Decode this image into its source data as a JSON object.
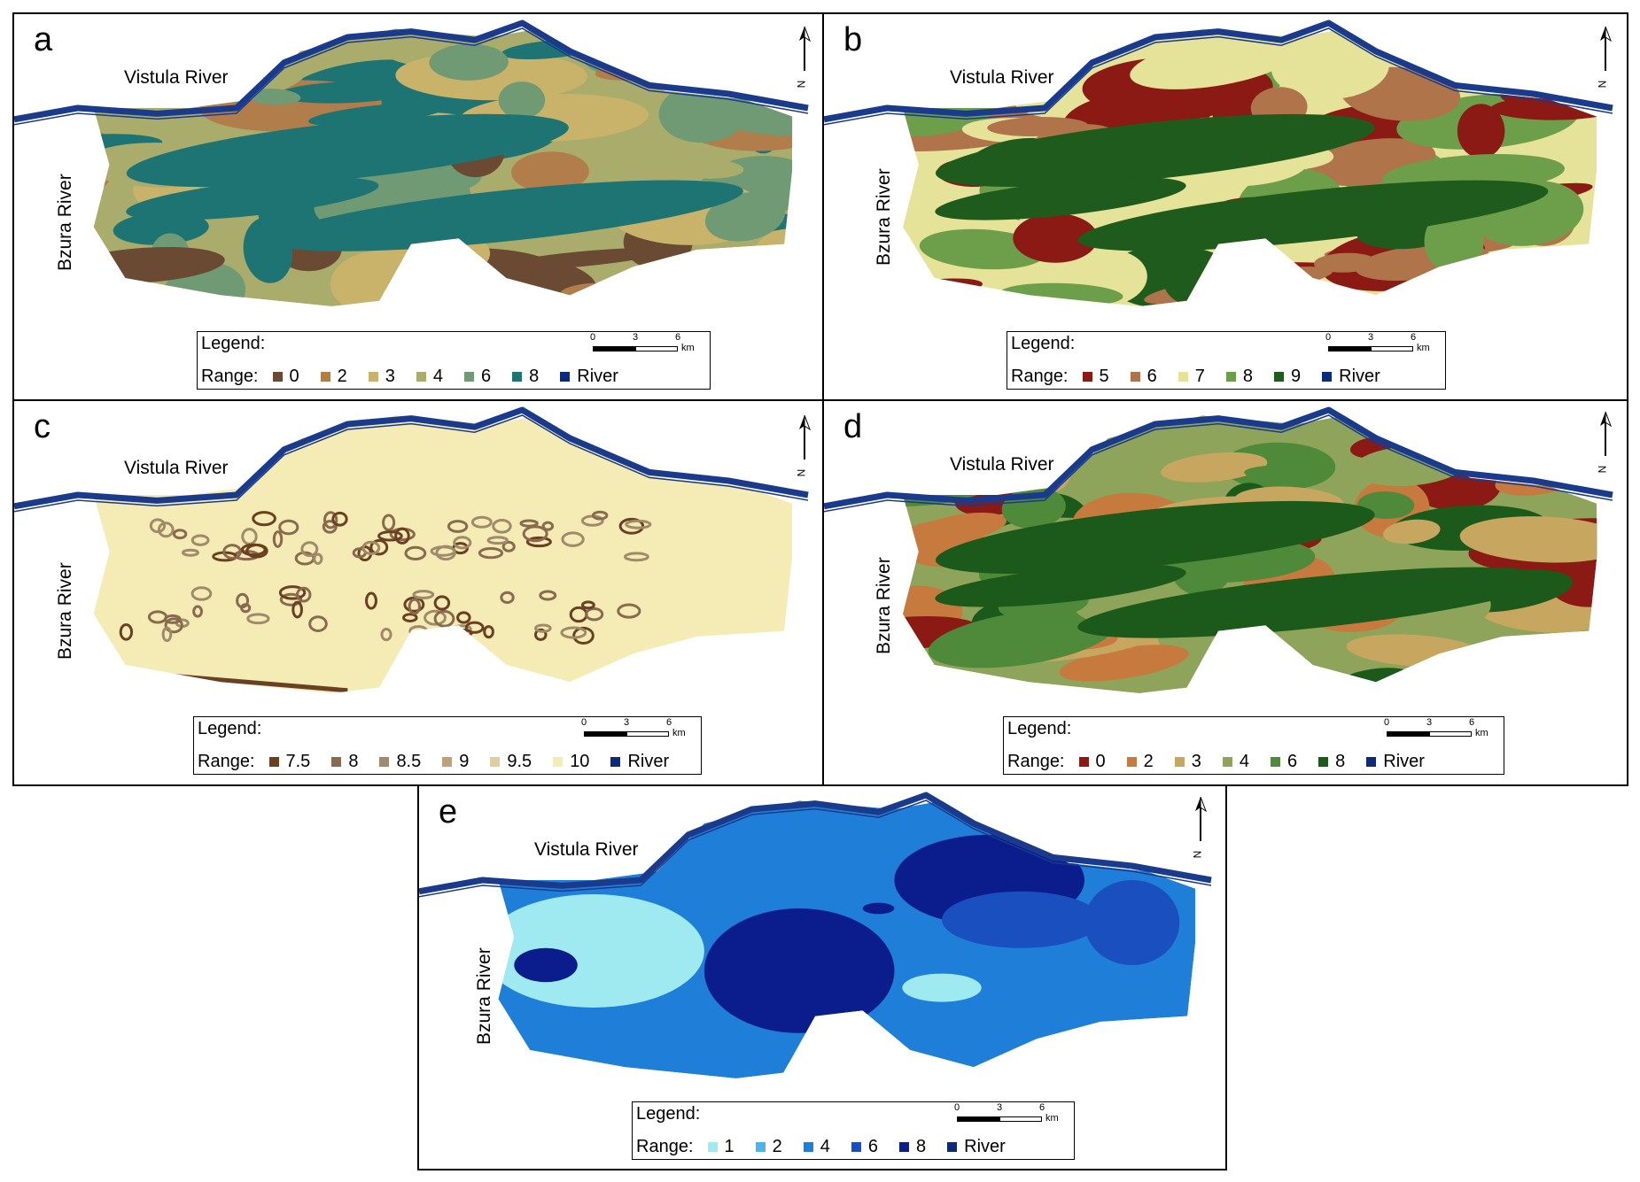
{
  "rivers": {
    "vistula": "Vistula River",
    "bzura": "Bzura River"
  },
  "north_label": "N",
  "legend_title": "Legend:",
  "range_label": "Range:",
  "river_label": "River",
  "scale": {
    "ticks": [
      "0",
      "3",
      "6"
    ],
    "unit": "km"
  },
  "colors": {
    "river": "#1a3a8c",
    "river_swatch": "#0b2a7a"
  },
  "panels": [
    {
      "id": "a",
      "letter": "a",
      "classes": [
        {
          "value": "0",
          "color": "#6b4a33"
        },
        {
          "value": "2",
          "color": "#b07d4b"
        },
        {
          "value": "3",
          "color": "#c9b36a"
        },
        {
          "value": "4",
          "color": "#a9ac6a"
        },
        {
          "value": "6",
          "color": "#6f9a74"
        },
        {
          "value": "8",
          "color": "#1e7472"
        }
      ]
    },
    {
      "id": "b",
      "letter": "b",
      "classes": [
        {
          "value": "5",
          "color": "#8b1a14"
        },
        {
          "value": "6",
          "color": "#b0744a"
        },
        {
          "value": "7",
          "color": "#e5e39a"
        },
        {
          "value": "8",
          "color": "#6d9e4a"
        },
        {
          "value": "9",
          "color": "#1f5b1c"
        }
      ]
    },
    {
      "id": "c",
      "letter": "c",
      "classes": [
        {
          "value": "7.5",
          "color": "#6b3f22"
        },
        {
          "value": "8",
          "color": "#8a6a4e"
        },
        {
          "value": "8.5",
          "color": "#a08a6a"
        },
        {
          "value": "9",
          "color": "#c0a074"
        },
        {
          "value": "9.5",
          "color": "#e1cf96"
        },
        {
          "value": "10",
          "color": "#f4ebb5"
        }
      ]
    },
    {
      "id": "d",
      "letter": "d",
      "classes": [
        {
          "value": "0",
          "color": "#8b1a14"
        },
        {
          "value": "2",
          "color": "#c67a3e"
        },
        {
          "value": "3",
          "color": "#c7a660"
        },
        {
          "value": "4",
          "color": "#8ea45a"
        },
        {
          "value": "6",
          "color": "#4f8a3a"
        },
        {
          "value": "8",
          "color": "#1b5a1a"
        }
      ]
    },
    {
      "id": "e",
      "letter": "e",
      "classes": [
        {
          "value": "1",
          "color": "#9eeaf0"
        },
        {
          "value": "2",
          "color": "#4db3ea"
        },
        {
          "value": "4",
          "color": "#1f7fd8"
        },
        {
          "value": "6",
          "color": "#1a4fc0"
        },
        {
          "value": "8",
          "color": "#0b1c8c"
        }
      ]
    }
  ]
}
